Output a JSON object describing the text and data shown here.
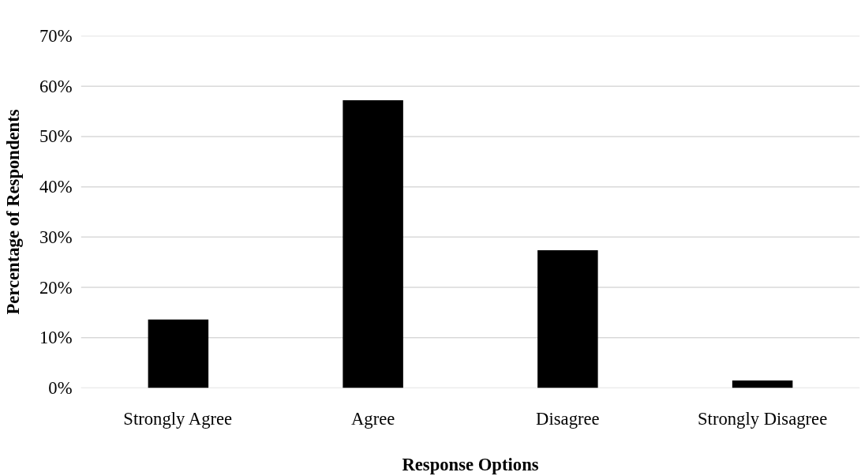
{
  "chart_data": {
    "type": "bar",
    "categories": [
      "Strongly Agree",
      "Agree",
      "Disagree",
      "Strongly Disagree"
    ],
    "values": [
      13.6,
      57.2,
      27.4,
      1.5
    ],
    "color": "#000000",
    "xlabel": "Response Options",
    "ylabel": "Percentage of Respondents",
    "ylim": [
      0,
      70
    ],
    "yticks": [
      {
        "value": 0,
        "label": "0%"
      },
      {
        "value": 10,
        "label": "10%"
      },
      {
        "value": 20,
        "label": "20%"
      },
      {
        "value": 30,
        "label": "30%"
      },
      {
        "value": 40,
        "label": "40%"
      },
      {
        "value": 50,
        "label": "50%"
      },
      {
        "value": 60,
        "label": "60%"
      },
      {
        "value": 70,
        "label": "70%"
      }
    ],
    "grid": "y"
  }
}
